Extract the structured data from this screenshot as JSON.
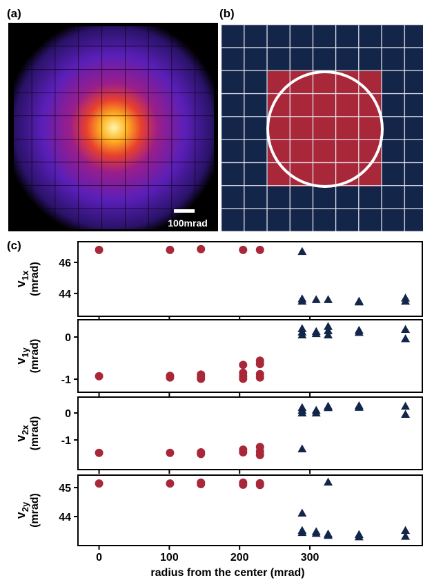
{
  "panels": {
    "a": {
      "label": "(a)",
      "scale_bar": "100mrad"
    },
    "b": {
      "label": "(b)"
    },
    "c": {
      "label": "(c)"
    }
  },
  "x_axis": {
    "label": "radius from the center (mrad)",
    "xlim": [
      -30,
      460
    ],
    "xticks": [
      0,
      100,
      200,
      300
    ]
  },
  "chart_data": [
    {
      "type": "scatter",
      "ylabel": {
        "main": "v",
        "sub": "1x",
        "unit": "(mrad)"
      },
      "ylim": [
        42.53,
        47.33
      ],
      "yticks": [
        44,
        46
      ],
      "series": [
        {
          "color": "#a8283a",
          "marker": "circle",
          "x": [
            0,
            101,
            145,
            205,
            229
          ],
          "y": [
            46.8,
            46.8,
            46.85,
            46.8,
            46.8
          ]
        },
        {
          "color": "#14254a",
          "marker": "triangle",
          "x": [
            289,
            289,
            289,
            309,
            326,
            370,
            370,
            436,
            436
          ],
          "y": [
            46.7,
            43.65,
            43.5,
            43.6,
            43.6,
            43.5,
            43.45,
            43.7,
            43.5
          ]
        }
      ]
    },
    {
      "type": "scatter",
      "ylabel": {
        "main": "v",
        "sub": "1y",
        "unit": "(mrad)"
      },
      "ylim": [
        -1.31,
        0.41
      ],
      "yticks": [
        -1,
        0
      ],
      "series": [
        {
          "color": "#a8283a",
          "marker": "circle",
          "x": [
            0,
            101,
            101,
            145,
            145,
            145,
            205,
            205,
            205,
            205,
            229,
            229,
            229,
            229
          ],
          "y": [
            -0.93,
            -0.92,
            -0.96,
            -0.89,
            -0.95,
            -0.99,
            -0.66,
            -0.85,
            -0.93,
            -0.99,
            -0.56,
            -0.64,
            -0.88,
            -0.96
          ]
        },
        {
          "color": "#14254a",
          "marker": "triangle",
          "x": [
            289,
            289,
            289,
            309,
            309,
            326,
            326,
            326,
            370,
            370,
            436,
            436
          ],
          "y": [
            0.2,
            0.12,
            0.05,
            0.13,
            0.08,
            0.25,
            0.15,
            0.05,
            0.16,
            0.11,
            0.18,
            -0.04
          ]
        }
      ]
    },
    {
      "type": "scatter",
      "ylabel": {
        "main": "v",
        "sub": "2x",
        "unit": "(mrad)"
      },
      "ylim": [
        -2.1,
        0.59
      ],
      "yticks": [
        -1,
        0
      ],
      "series": [
        {
          "color": "#a8283a",
          "marker": "circle",
          "x": [
            0,
            101,
            145,
            145,
            205,
            205,
            229,
            229,
            229
          ],
          "y": [
            -1.48,
            -1.48,
            -1.46,
            -1.52,
            -1.36,
            -1.46,
            -1.26,
            -1.43,
            -1.56
          ]
        },
        {
          "color": "#14254a",
          "marker": "triangle",
          "x": [
            289,
            289,
            289,
            289,
            309,
            309,
            326,
            326,
            370,
            370,
            436,
            436
          ],
          "y": [
            0.2,
            0.1,
            0.0,
            -1.33,
            0.1,
            0.0,
            0.25,
            0.2,
            0.27,
            0.21,
            0.25,
            -0.05
          ]
        }
      ]
    },
    {
      "type": "scatter",
      "ylabel": {
        "main": "v",
        "sub": "2y",
        "unit": "(mrad)"
      },
      "ylim": [
        43.0,
        45.43
      ],
      "yticks": [
        44,
        45
      ],
      "series": [
        {
          "color": "#a8283a",
          "marker": "circle",
          "x": [
            0,
            101,
            145,
            145,
            205,
            205,
            229,
            229
          ],
          "y": [
            45.14,
            45.14,
            45.17,
            45.12,
            45.17,
            45.1,
            45.15,
            45.09
          ]
        },
        {
          "color": "#14254a",
          "marker": "triangle",
          "x": [
            289,
            289,
            289,
            309,
            309,
            326,
            326,
            326,
            370,
            370,
            436,
            436
          ],
          "y": [
            44.12,
            43.52,
            43.45,
            43.48,
            43.42,
            45.19,
            43.4,
            43.35,
            43.38,
            43.3,
            43.52,
            43.32
          ]
        }
      ]
    }
  ]
}
